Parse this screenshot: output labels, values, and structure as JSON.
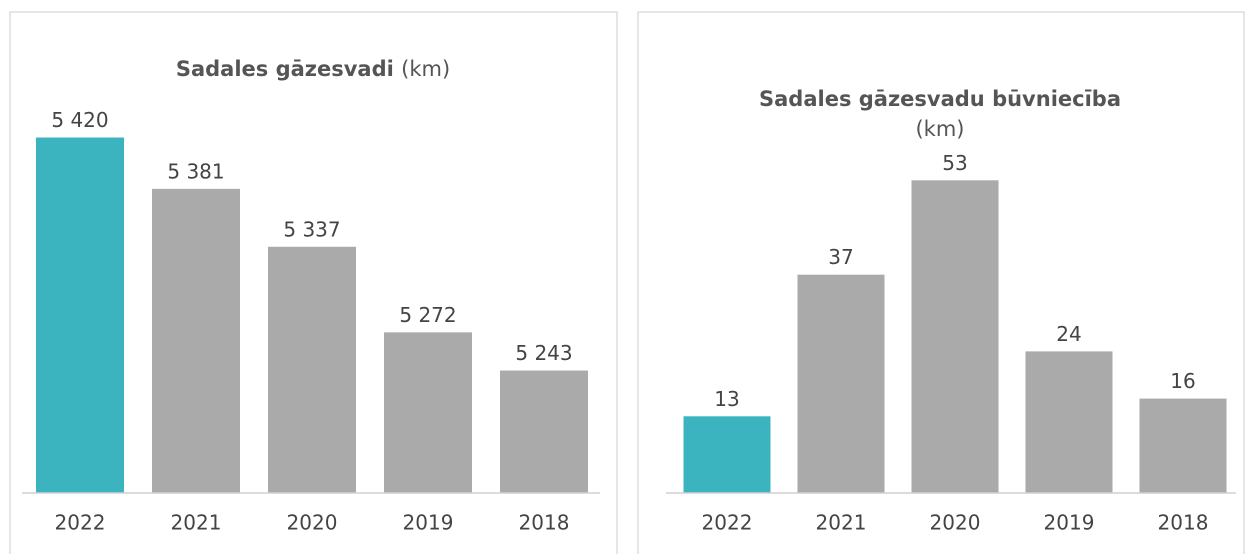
{
  "chart_data": [
    {
      "type": "bar",
      "title": "Sadales gāzesvadi",
      "unit": "(km)",
      "categories": [
        "2022",
        "2021",
        "2020",
        "2019",
        "2018"
      ],
      "values": [
        5420,
        5381,
        5337,
        5272,
        5243
      ],
      "value_labels": [
        "5 420",
        "5 381",
        "5 337",
        "5 272",
        "5 243"
      ],
      "colors": [
        "#3cb4c0",
        "#aaaaaa",
        "#aaaaaa",
        "#aaaaaa",
        "#aaaaaa"
      ],
      "ylim": [
        5150,
        5450
      ]
    },
    {
      "type": "bar",
      "title": "Sadales gāzesvadu būvniecība",
      "unit": "(km)",
      "categories": [
        "2022",
        "2021",
        "2020",
        "2019",
        "2018"
      ],
      "values": [
        13,
        37,
        53,
        24,
        16
      ],
      "colors": [
        "#3cb4c0",
        "#aaaaaa",
        "#aaaaaa",
        "#aaaaaa",
        "#aaaaaa"
      ],
      "ylim": [
        0,
        60
      ]
    }
  ]
}
